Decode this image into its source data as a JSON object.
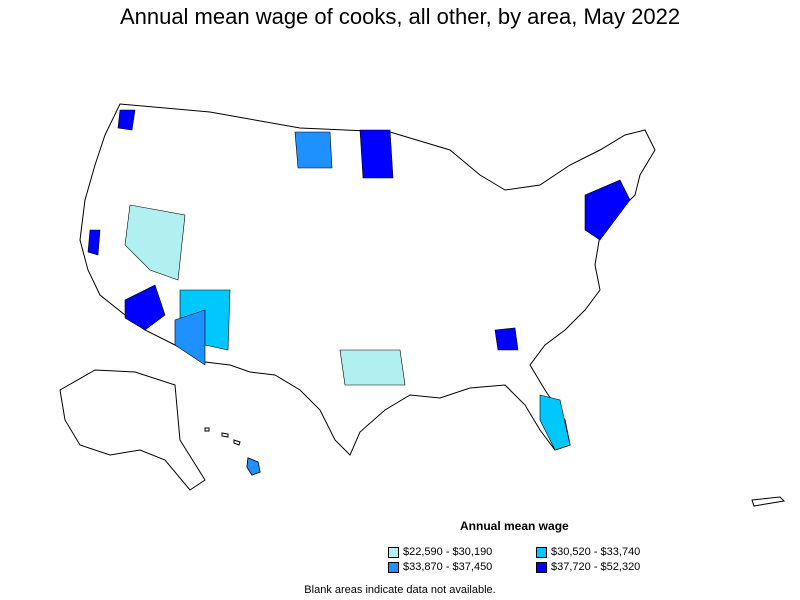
{
  "map": {
    "title": "Annual mean wage of cooks, all other, by area, May 2022",
    "legend": {
      "title": "Annual mean wage",
      "items": [
        {
          "label": "$22,590 - $30,190",
          "color": "#b0f0f0"
        },
        {
          "label": "$30,520 - $33,740",
          "color": "#00c8ff"
        },
        {
          "label": "$33,870 - $37,450",
          "color": "#1e90ff"
        },
        {
          "label": "$37,720 - $52,320",
          "color": "#0000ff"
        }
      ]
    },
    "note": "Blank areas indicate data not available."
  }
}
